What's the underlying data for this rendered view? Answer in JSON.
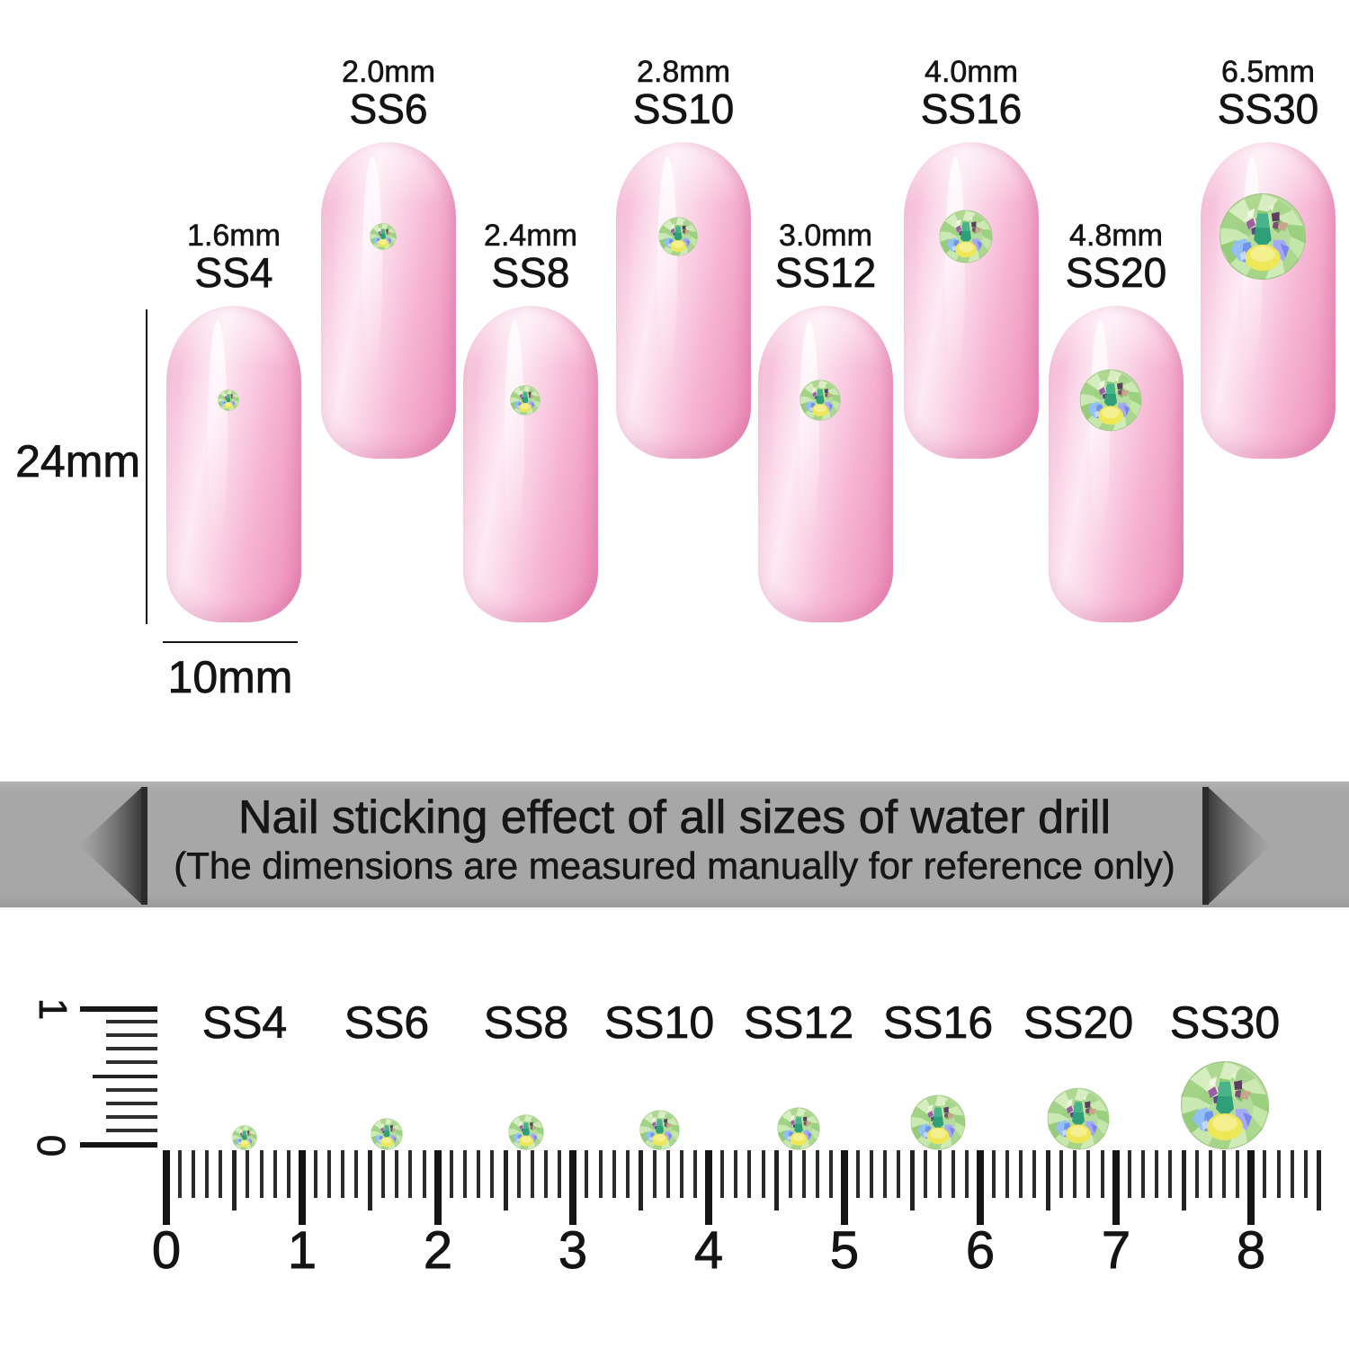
{
  "nails": [
    {
      "name": "SS4",
      "size_mm": "1.6mm"
    },
    {
      "name": "SS6",
      "size_mm": "2.0mm"
    },
    {
      "name": "SS8",
      "size_mm": "2.4mm"
    },
    {
      "name": "SS10",
      "size_mm": "2.8mm"
    },
    {
      "name": "SS12",
      "size_mm": "3.0mm"
    },
    {
      "name": "SS16",
      "size_mm": "4.0mm"
    },
    {
      "name": "SS20",
      "size_mm": "4.8mm"
    },
    {
      "name": "SS30",
      "size_mm": "6.5mm"
    }
  ],
  "dimensions": {
    "nail_length": "24mm",
    "nail_width": "10mm"
  },
  "banner": {
    "title": "Nail sticking effect of all sizes of water drill",
    "subtitle": "(The dimensions are measured manually for reference only)",
    "background": "#a7a7a7"
  },
  "ruler": {
    "numbers": [
      "0",
      "1",
      "2",
      "3",
      "4",
      "5",
      "6",
      "7",
      "8"
    ],
    "sizes": [
      "SS4",
      "SS6",
      "SS8",
      "SS10",
      "SS12",
      "SS16",
      "SS20",
      "SS30"
    ],
    "vertical_top_label": "1",
    "vertical_bottom_label": "0"
  },
  "colors": {
    "nail_pink": "#f7bcd6",
    "nail_highlight": "#fdeaf3",
    "banner_gray": "#a7a7a7",
    "text": "#141414",
    "gem_green": "#b5dc9c",
    "gem_teal": "#2f9f78",
    "gem_yellow": "#eee757",
    "gem_blue": "#93c0f4"
  }
}
